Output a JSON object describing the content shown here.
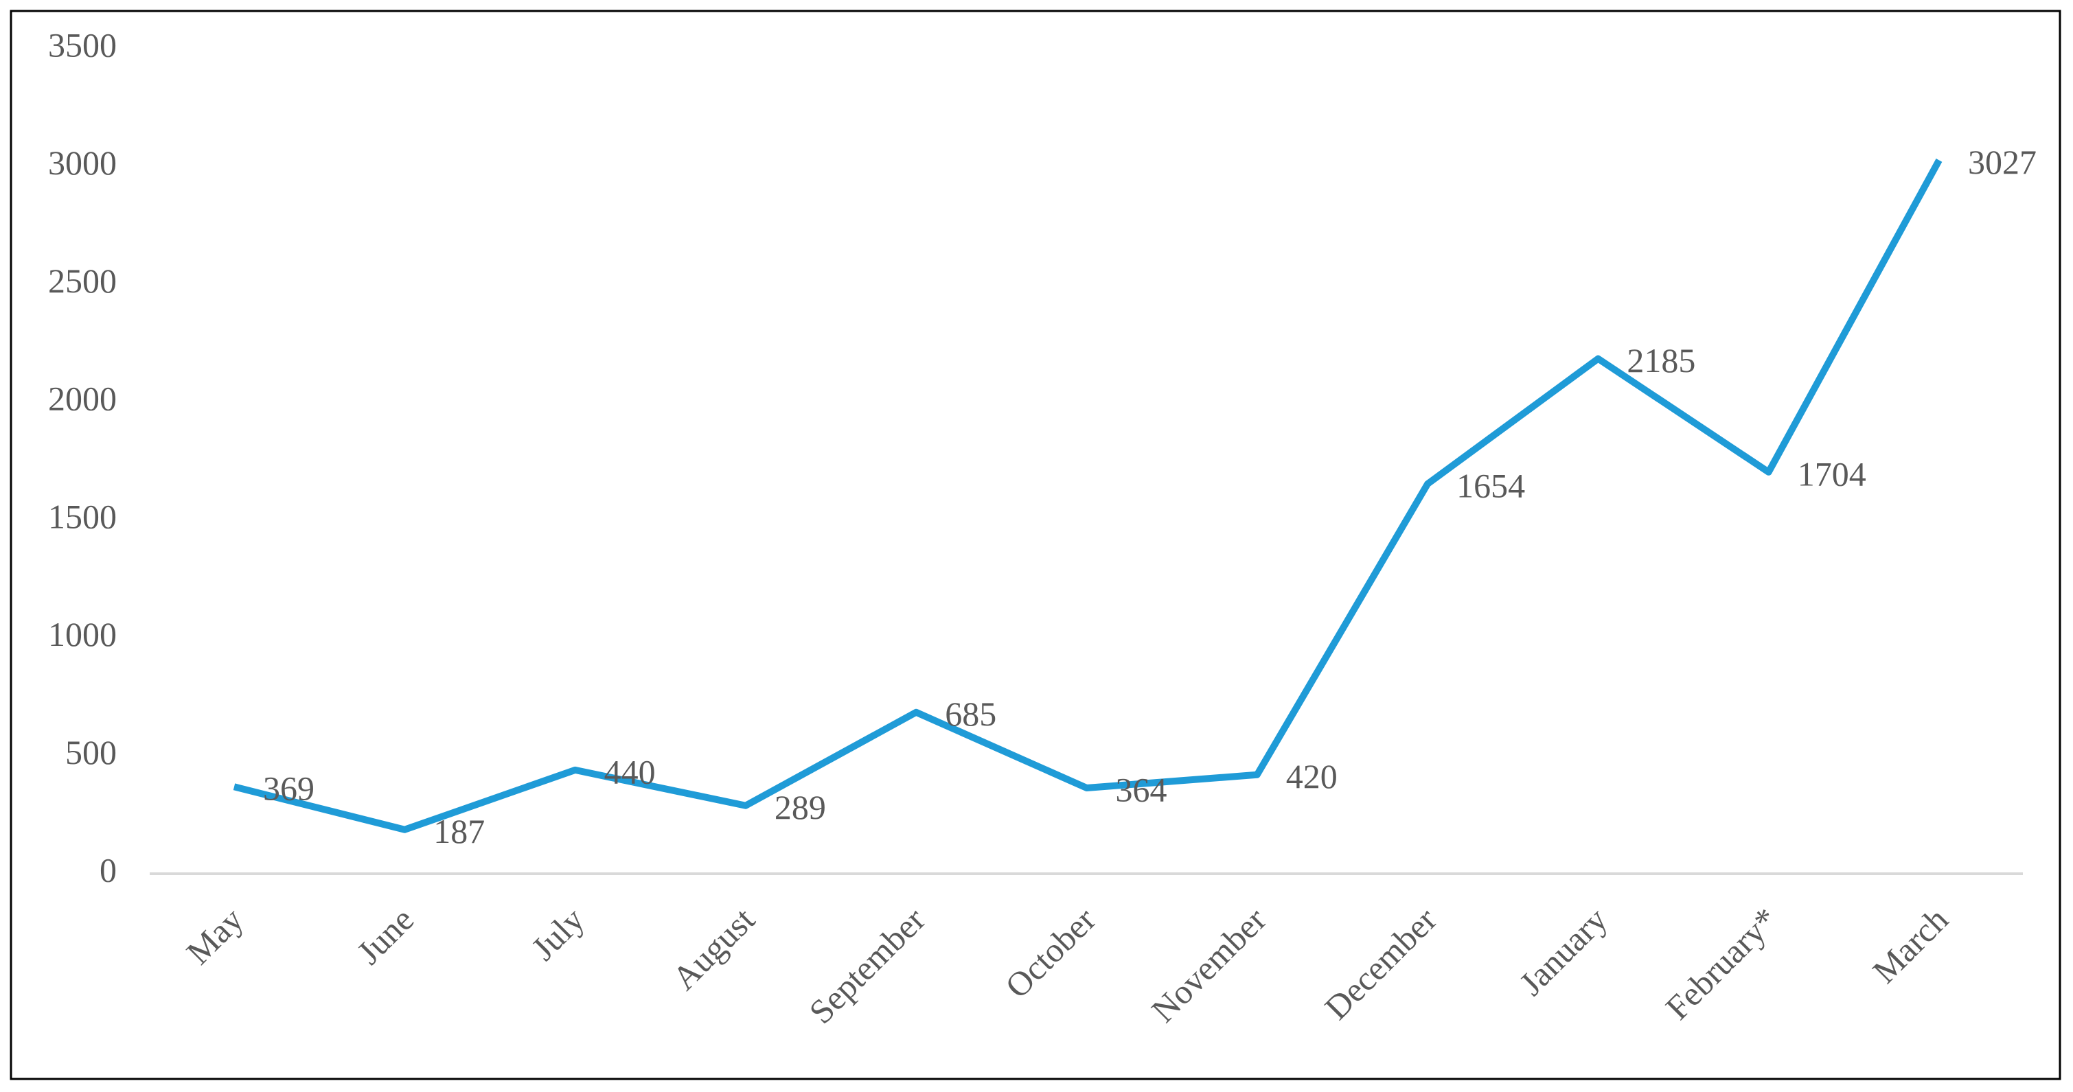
{
  "chart_data": {
    "type": "line",
    "categories": [
      "May",
      "June",
      "July",
      "August",
      "September",
      "October",
      "November",
      "December",
      "January",
      "February*",
      "March"
    ],
    "series": [
      {
        "color": "#1f9bd7",
        "values": [
          369,
          187,
          440,
          289,
          685,
          364,
          420,
          1654,
          2185,
          1704,
          3027
        ]
      }
    ],
    "ylim": [
      0,
      3500
    ],
    "yticks": [
      0,
      500,
      1000,
      1500,
      2000,
      2500,
      3000,
      3500
    ],
    "grid": false
  }
}
